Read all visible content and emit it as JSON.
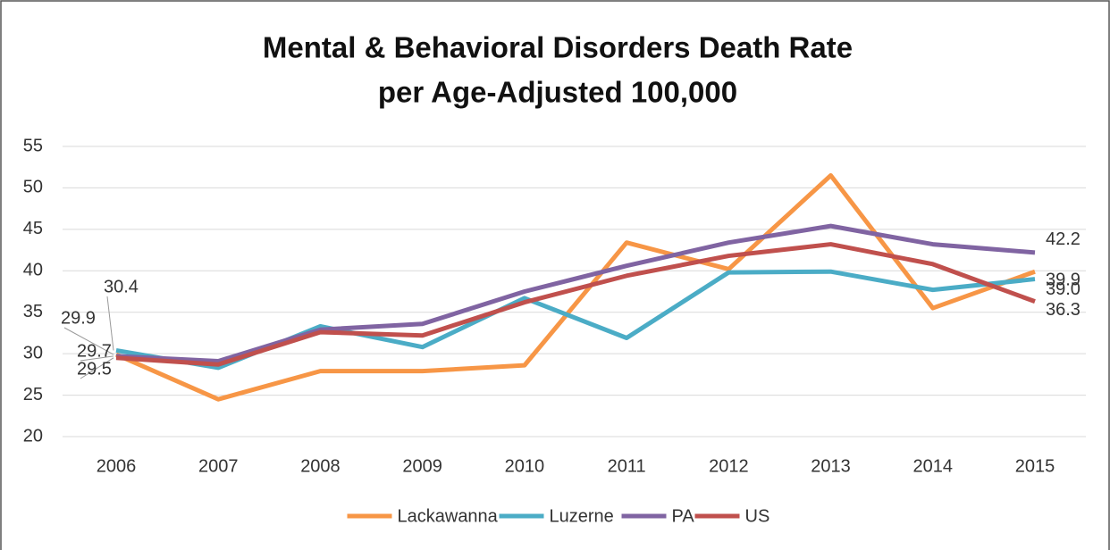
{
  "chart_data": {
    "type": "line",
    "title": [
      "Mental & Behavioral Disorders Death Rate",
      "per Age-Adjusted 100,000"
    ],
    "categories": [
      "2006",
      "2007",
      "2008",
      "2009",
      "2010",
      "2011",
      "2012",
      "2013",
      "2014",
      "2015"
    ],
    "series": [
      {
        "name": "Lackawanna",
        "color": "#f79646",
        "values": [
          29.9,
          24.5,
          27.9,
          27.9,
          28.6,
          43.4,
          40.2,
          51.5,
          35.5,
          39.9
        ],
        "value_labels": [
          "29.9",
          null,
          null,
          null,
          null,
          null,
          null,
          null,
          null,
          "39.9"
        ]
      },
      {
        "name": "Luzerne",
        "color": "#4bacc6",
        "values": [
          30.4,
          28.3,
          33.3,
          30.8,
          36.7,
          31.9,
          39.8,
          39.9,
          37.7,
          39.0
        ],
        "value_labels": [
          "30.4",
          null,
          null,
          null,
          null,
          null,
          null,
          null,
          null,
          "39.0"
        ]
      },
      {
        "name": "PA",
        "color": "#8064a2",
        "values": [
          29.7,
          29.1,
          32.9,
          33.6,
          37.5,
          40.6,
          43.4,
          45.4,
          43.2,
          42.2
        ],
        "value_labels": [
          "29.7",
          null,
          null,
          null,
          null,
          null,
          null,
          null,
          null,
          "42.2"
        ]
      },
      {
        "name": "US",
        "color": "#c0504d",
        "values": [
          29.5,
          28.7,
          32.6,
          32.2,
          36.2,
          39.4,
          41.8,
          43.2,
          40.8,
          36.3
        ],
        "value_labels": [
          "29.5",
          null,
          null,
          null,
          null,
          null,
          null,
          null,
          null,
          "36.3"
        ]
      }
    ],
    "ylim": [
      20,
      55
    ],
    "yticks": [
      20,
      25,
      30,
      35,
      40,
      45,
      50,
      55
    ],
    "grid": true,
    "legend": "bottom"
  }
}
